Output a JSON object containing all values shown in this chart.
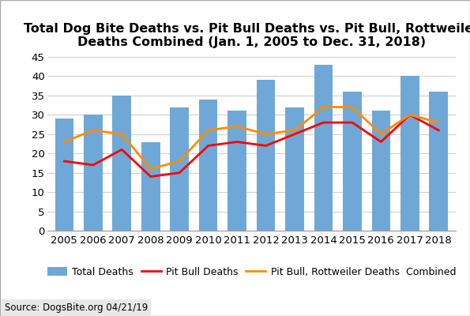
{
  "years": [
    2005,
    2006,
    2007,
    2008,
    2009,
    2010,
    2011,
    2012,
    2013,
    2014,
    2015,
    2016,
    2017,
    2018
  ],
  "total_deaths": [
    29,
    30,
    35,
    23,
    32,
    34,
    31,
    39,
    32,
    43,
    36,
    31,
    40,
    36
  ],
  "pit_bull_deaths": [
    18,
    17,
    21,
    14,
    15,
    22,
    23,
    22,
    25,
    28,
    28,
    23,
    30,
    26
  ],
  "pit_rottweiler_combined": [
    23,
    26,
    25,
    16,
    18,
    26,
    27,
    25,
    26,
    32,
    32,
    25,
    30,
    28
  ],
  "bar_color": "#6fa8d6",
  "pit_bull_line_color": "#ff0000",
  "pit_rottweiler_line_color": "#ff8c00",
  "title_line1": "Total Dog Bite Deaths vs. Pit Bull Deaths vs. Pit Bull, Rottweiler",
  "title_line2": "Deaths Combined (Jan. 1, 2005 to Dec. 31, 2018)",
  "ylim": [
    0,
    45
  ],
  "yticks": [
    0,
    5,
    10,
    15,
    20,
    25,
    30,
    35,
    40,
    45
  ],
  "source_text": "Source: DogsBite.org 04/21/19",
  "legend_total": "Total Deaths",
  "legend_pit_bull": "Pit Bull Deaths",
  "legend_pit_rottweiler": "Pit Bull, Rottweiler Deaths  Combined",
  "background_color": "#ffffff",
  "grid_color": "#d0d0d0",
  "title_fontsize": 11.5,
  "axis_fontsize": 9.5,
  "legend_fontsize": 9,
  "source_fontsize": 8.5
}
